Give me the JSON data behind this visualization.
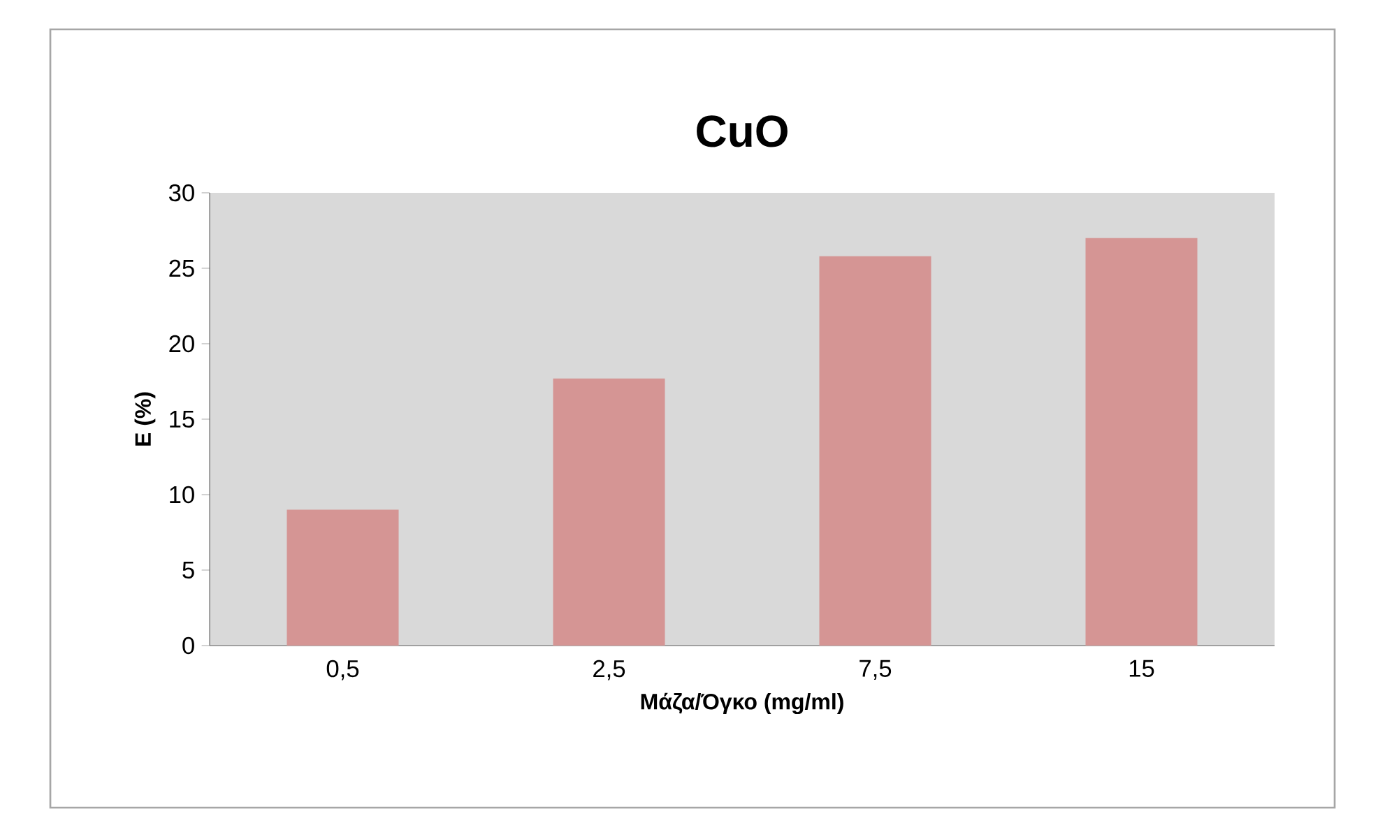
{
  "chart_data": {
    "type": "bar",
    "title": "CuO",
    "xlabel": "Μάζα/Όγκο (mg/ml)",
    "ylabel": "E (%)",
    "categories": [
      "0,5",
      "2,5",
      "7,5",
      "15"
    ],
    "values": [
      9,
      17.7,
      25.8,
      27
    ],
    "color": "#d59594",
    "ylim": [
      0,
      30
    ],
    "yticks": [
      0,
      5,
      10,
      15,
      20,
      25,
      30
    ]
  }
}
